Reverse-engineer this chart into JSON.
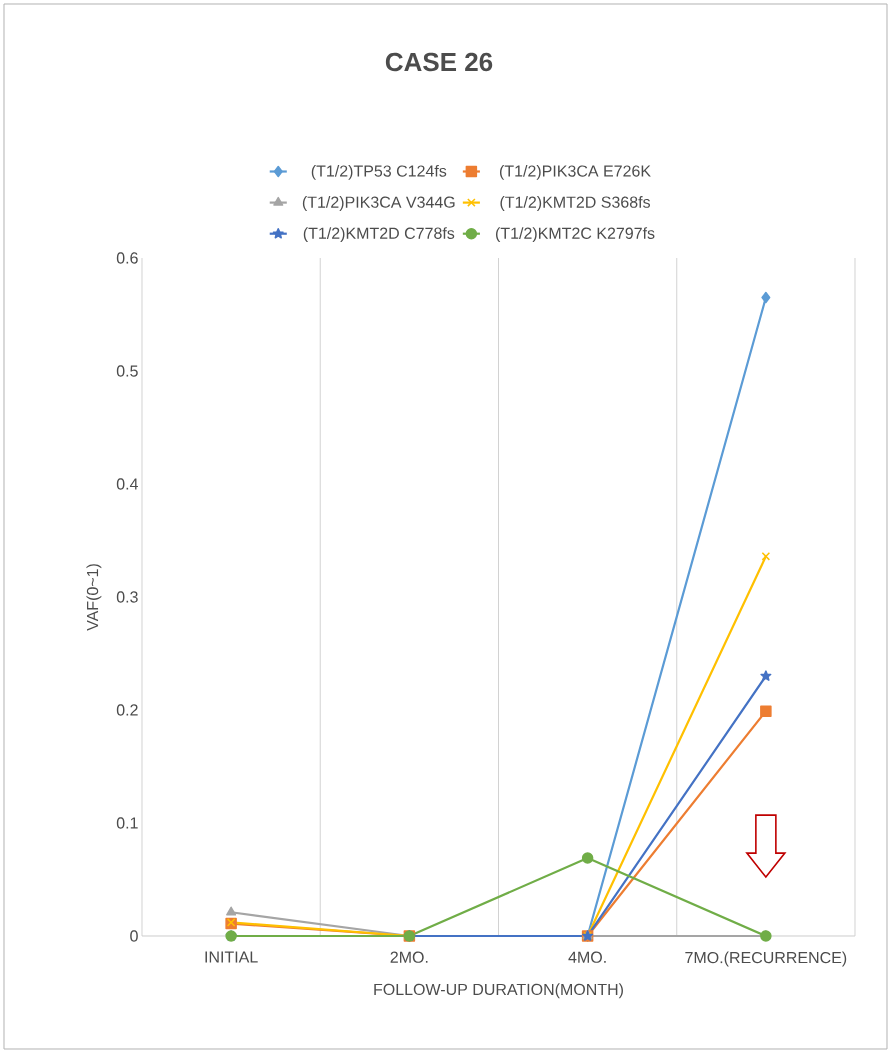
{
  "chart_data": {
    "type": "line",
    "title": "CASE 26",
    "xlabel": "FOLLOW-UP DURATION(MONTH)",
    "ylabel": "VAF(0~1)",
    "categories": [
      "INITIAL",
      "2MO.",
      "4MO.",
      "7MO.(RECURRENCE)"
    ],
    "series": [
      {
        "name": "(T1/2)TP53 C124fs",
        "color": "#5b9bd5",
        "marker": "diamond",
        "values": [
          null,
          0,
          0,
          0.565
        ]
      },
      {
        "name": "(T1/2)PIK3CA E726K",
        "color": "#ed7d31",
        "marker": "square",
        "values": [
          0.011,
          0,
          0,
          0.199
        ]
      },
      {
        "name": "(T1/2)PIK3CA V344G",
        "color": "#a5a5a5",
        "marker": "triangle",
        "values": [
          0.021,
          0,
          0,
          0
        ]
      },
      {
        "name": "(T1/2)KMT2D S368fs",
        "color": "#ffc000",
        "marker": "cross",
        "values": [
          0.012,
          0,
          0,
          0.336
        ]
      },
      {
        "name": "(T1/2)KMT2D C778fs",
        "color": "#4472c4",
        "marker": "star",
        "values": [
          0,
          0,
          0,
          0.23
        ]
      },
      {
        "name": "(T1/2)KMT2C K2797fs",
        "color": "#70ad47",
        "marker": "circle",
        "values": [
          0,
          0,
          0.069,
          0
        ]
      }
    ],
    "ylim": [
      0,
      0.6
    ],
    "yticks": [
      0,
      0.1,
      0.2,
      0.3,
      0.4,
      0.5,
      0.6
    ],
    "grid": "x",
    "legend": "top",
    "line_style": "solid"
  }
}
